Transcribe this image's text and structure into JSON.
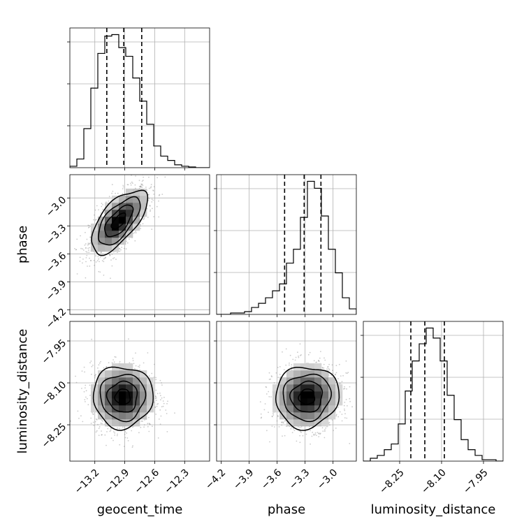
{
  "chart_data": {
    "type": "corner",
    "grid": true,
    "parameters": [
      {
        "name": "geocent_time",
        "label": "geocent_time",
        "range": [
          -13.45,
          -12.05
        ],
        "ticks": [
          -13.2,
          -12.9,
          -12.6,
          -12.3
        ],
        "tick_labels": [
          "−13.2",
          "−12.9",
          "−12.6",
          "−12.3"
        ],
        "quantiles": [
          -13.08,
          -12.91,
          -12.73
        ],
        "hist_bin_edges": [
          -13.45,
          -13.38,
          -13.31,
          -13.24,
          -13.17,
          -13.1,
          -13.03,
          -12.96,
          -12.89,
          -12.82,
          -12.75,
          -12.68,
          -12.61,
          -12.54,
          -12.47,
          -12.4,
          -12.33,
          -12.26,
          -12.19,
          -12.12,
          -12.05
        ],
        "hist_counts": [
          0.01,
          0.06,
          0.27,
          0.55,
          0.79,
          0.91,
          0.92,
          0.83,
          0.77,
          0.62,
          0.46,
          0.3,
          0.15,
          0.08,
          0.05,
          0.02,
          0.01,
          0.005,
          0.0,
          0.0
        ]
      },
      {
        "name": "phase",
        "label": "phase",
        "range": [
          -4.25,
          -2.75
        ],
        "ticks": [
          -4.2,
          -3.9,
          -3.6,
          -3.3,
          -3.0
        ],
        "tick_labels": [
          "−4.2",
          "−3.9",
          "−3.6",
          "−3.3",
          "−3.0"
        ],
        "quantiles": [
          -3.52,
          -3.31,
          -3.13
        ],
        "hist_bin_edges": [
          -4.25,
          -4.175,
          -4.1,
          -4.025,
          -3.95,
          -3.875,
          -3.8,
          -3.725,
          -3.65,
          -3.575,
          -3.5,
          -3.425,
          -3.35,
          -3.275,
          -3.2,
          -3.125,
          -3.05,
          -2.975,
          -2.9,
          -2.825,
          -2.75
        ],
        "hist_counts": [
          0.0,
          0.0,
          0.01,
          0.01,
          0.02,
          0.05,
          0.08,
          0.12,
          0.17,
          0.22,
          0.37,
          0.47,
          0.7,
          0.96,
          0.91,
          0.71,
          0.47,
          0.3,
          0.12,
          0.04
        ]
      },
      {
        "name": "luminosity_distance",
        "label": "luminosity_distance",
        "range": [
          -8.38,
          -7.88
        ],
        "ticks": [
          -8.25,
          -8.1,
          -7.95
        ],
        "tick_labels": [
          "−8.25",
          "−8.10",
          "−7.95"
        ],
        "quantiles": [
          -8.21,
          -8.16,
          -8.09
        ],
        "hist_bin_edges": [
          -8.38,
          -8.355,
          -8.33,
          -8.305,
          -8.28,
          -8.255,
          -8.23,
          -8.205,
          -8.18,
          -8.155,
          -8.13,
          -8.105,
          -8.08,
          -8.055,
          -8.03,
          -8.005,
          -7.98,
          -7.955,
          -7.93,
          -7.905,
          -7.88
        ],
        "hist_counts": [
          0.0,
          0.02,
          0.04,
          0.08,
          0.12,
          0.26,
          0.49,
          0.7,
          0.82,
          0.93,
          0.86,
          0.7,
          0.46,
          0.29,
          0.15,
          0.08,
          0.04,
          0.01,
          0.01,
          0.0
        ],
        "y_ticks": [
          -8.25,
          -8.1,
          -7.95
        ],
        "y_tick_labels": [
          "−8.25",
          "−8.10",
          "−7.95"
        ]
      }
    ],
    "joint": [
      {
        "x": "geocent_time",
        "y": "phase",
        "center": [
          -12.96,
          -3.25
        ],
        "spread": [
          0.14,
          0.17
        ],
        "correlation": 0.65
      },
      {
        "x": "geocent_time",
        "y": "luminosity_distance",
        "center": [
          -12.92,
          -8.15
        ],
        "spread": [
          0.15,
          0.055
        ],
        "correlation": 0.0
      },
      {
        "x": "phase",
        "y": "luminosity_distance",
        "center": [
          -3.28,
          -8.15
        ],
        "spread": [
          0.17,
          0.055
        ],
        "correlation": 0.05
      }
    ],
    "contour_levels_sigma": [
      0.5,
      1.0,
      1.5,
      2.0
    ]
  }
}
